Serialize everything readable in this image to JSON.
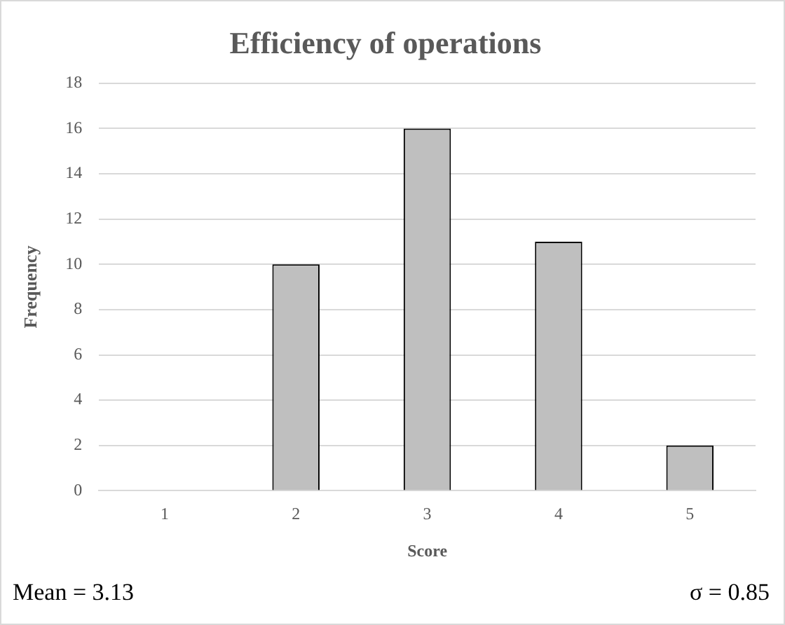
{
  "chart_data": {
    "type": "bar",
    "title": "Efficiency of operations",
    "xlabel": "Score",
    "ylabel": "Frequency",
    "categories": [
      "1",
      "2",
      "3",
      "4",
      "5"
    ],
    "values": [
      0,
      10,
      16,
      11,
      2
    ],
    "color": "#bfbfbf",
    "ylim": [
      0,
      18
    ],
    "yticks": [
      0,
      2,
      4,
      6,
      8,
      10,
      12,
      14,
      16,
      18
    ],
    "grid": "y",
    "annotations": [
      "Mean = 3.13",
      "σ = 0.85"
    ]
  }
}
